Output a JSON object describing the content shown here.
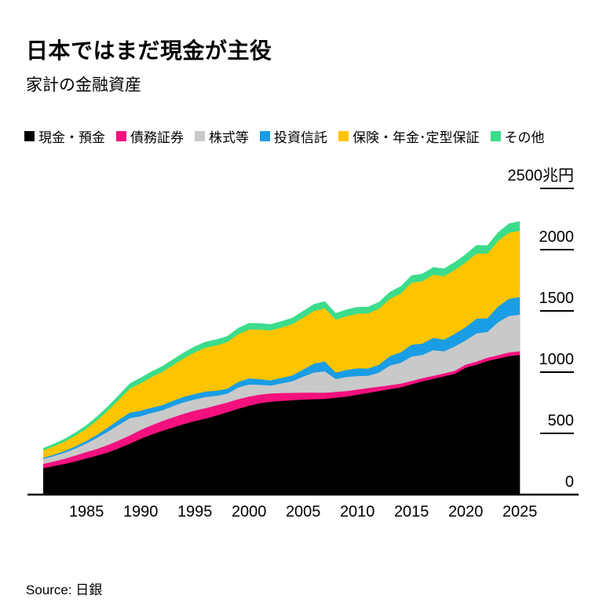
{
  "title": "日本ではまだ現金が主役",
  "subtitle": "家計の金融資産",
  "source": "Source: 日銀",
  "y_axis": {
    "tick_values": [
      0,
      500,
      1000,
      1500,
      2000,
      2500
    ],
    "tick_labels": [
      "0",
      "500",
      "1000",
      "1500",
      "2000",
      "2500兆円"
    ]
  },
  "x_axis": {
    "tick_labels": [
      "1985",
      "1990",
      "1995",
      "2000",
      "2005",
      "2010",
      "2015",
      "2020",
      "2025"
    ]
  },
  "chart_data": {
    "type": "area",
    "stacked": true,
    "title": "家計の金融資産",
    "ylabel": "兆円",
    "ylim": [
      0,
      2500
    ],
    "legend_position": "top",
    "grid": "right-tick-dashes",
    "x": [
      1981,
      1982,
      1983,
      1984,
      1985,
      1986,
      1987,
      1988,
      1989,
      1990,
      1991,
      1992,
      1993,
      1994,
      1995,
      1996,
      1997,
      1998,
      1999,
      2000,
      2001,
      2002,
      2003,
      2004,
      2005,
      2006,
      2007,
      2008,
      2009,
      2010,
      2011,
      2012,
      2013,
      2014,
      2015,
      2016,
      2017,
      2018,
      2019,
      2020,
      2021,
      2022,
      2023,
      2024,
      2025
    ],
    "series": [
      {
        "key": "cash-deposits",
        "name": "現金・預金",
        "color": "#000000",
        "values": [
          215,
          232,
          250,
          272,
          295,
          318,
          345,
          378,
          415,
          455,
          490,
          520,
          548,
          575,
          600,
          620,
          645,
          672,
          700,
          725,
          745,
          758,
          765,
          770,
          775,
          778,
          780,
          790,
          800,
          815,
          830,
          845,
          860,
          875,
          900,
          925,
          945,
          965,
          985,
          1035,
          1060,
          1090,
          1110,
          1130,
          1140
        ]
      },
      {
        "key": "debt-securities",
        "name": "債務証券",
        "color": "#f4117d",
        "values": [
          35,
          38,
          42,
          47,
          52,
          56,
          60,
          64,
          68,
          72,
          76,
          80,
          83,
          85,
          86,
          85,
          83,
          80,
          78,
          75,
          71,
          67,
          63,
          60,
          57,
          54,
          51,
          48,
          45,
          42,
          39,
          36,
          33,
          30,
          27,
          25,
          24,
          24,
          25,
          26,
          26,
          27,
          28,
          30,
          30
        ]
      },
      {
        "key": "equities",
        "name": "株式等",
        "color": "#c9c9c9",
        "values": [
          40,
          44,
          50,
          58,
          70,
          90,
          110,
          128,
          140,
          112,
          100,
          88,
          92,
          94,
          90,
          92,
          78,
          72,
          95,
          98,
          80,
          65,
          80,
          95,
          130,
          165,
          175,
          105,
          115,
          110,
          100,
          115,
          160,
          170,
          200,
          190,
          210,
          180,
          200,
          198,
          230,
          210,
          270,
          298,
          300
        ]
      },
      {
        "key": "investment-trusts",
        "name": "投資信託",
        "color": "#1a9de4",
        "values": [
          10,
          12,
          14,
          17,
          20,
          26,
          33,
          40,
          46,
          45,
          43,
          42,
          43,
          44,
          45,
          44,
          42,
          40,
          46,
          50,
          46,
          42,
          44,
          48,
          58,
          72,
          80,
          52,
          58,
          64,
          60,
          64,
          77,
          86,
          96,
          92,
          100,
          96,
          102,
          108,
          120,
          112,
          128,
          140,
          142
        ]
      },
      {
        "key": "insurance-pension",
        "name": "保険・年金･定型保証",
        "color": "#ffc400",
        "values": [
          60,
          68,
          77,
          88,
          100,
          118,
          140,
          165,
          195,
          225,
          250,
          272,
          292,
          315,
          340,
          358,
          370,
          380,
          390,
          400,
          405,
          408,
          412,
          418,
          425,
          430,
          435,
          432,
          438,
          445,
          450,
          458,
          468,
          480,
          505,
          510,
          515,
          518,
          522,
          528,
          532,
          528,
          535,
          540,
          542
        ]
      },
      {
        "key": "other",
        "name": "その他",
        "color": "#3bdc8b",
        "values": [
          20,
          22,
          24,
          27,
          30,
          33,
          36,
          40,
          44,
          46,
          47,
          48,
          48,
          49,
          50,
          50,
          49,
          50,
          52,
          53,
          52,
          51,
          52,
          53,
          55,
          57,
          58,
          55,
          55,
          56,
          55,
          56,
          58,
          60,
          62,
          62,
          64,
          63,
          65,
          68,
          70,
          68,
          72,
          76,
          78
        ]
      }
    ]
  }
}
